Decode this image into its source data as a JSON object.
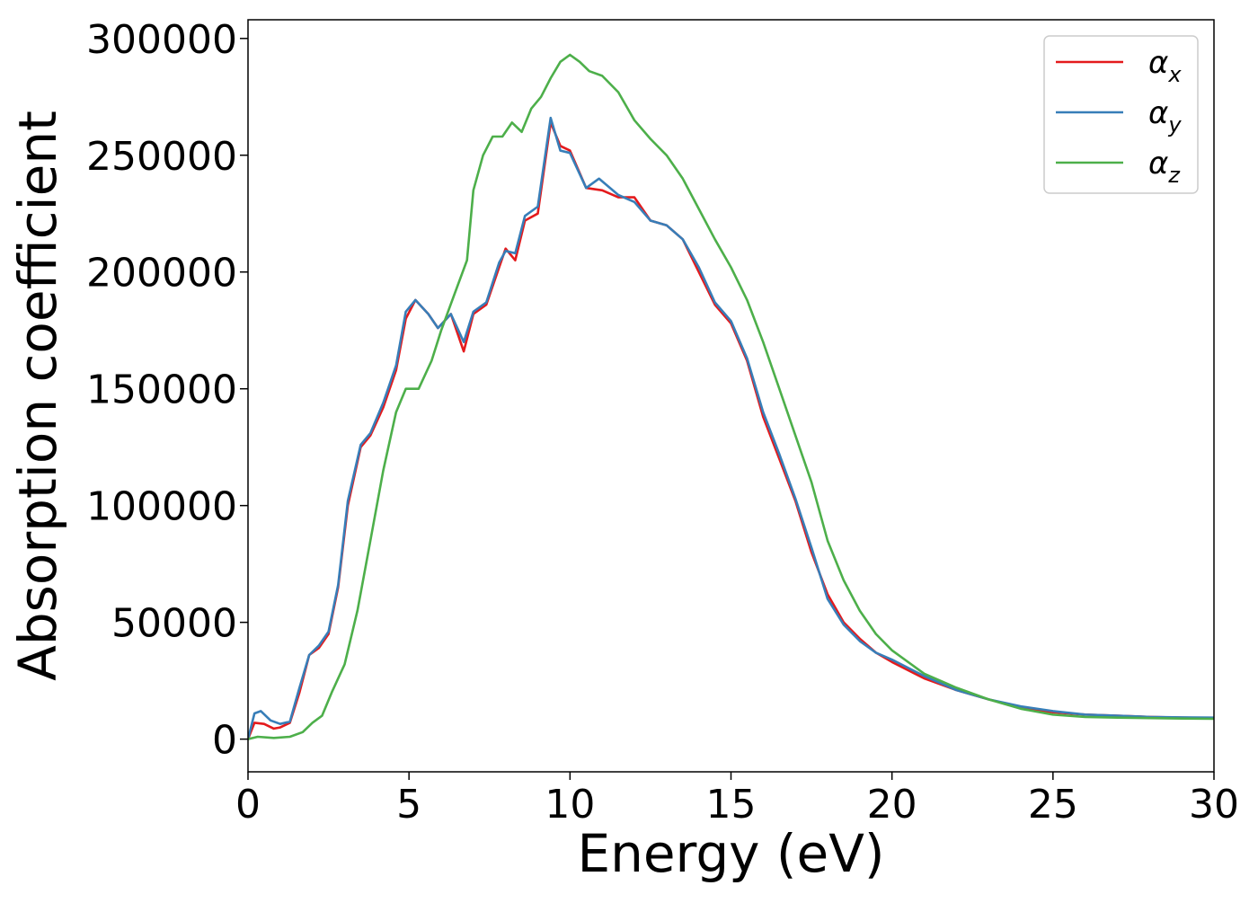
{
  "chart_data": {
    "type": "line",
    "title": "",
    "xlabel": "Energy (eV)",
    "ylabel": "Absorption coefficient",
    "xlim": [
      0,
      30
    ],
    "ylim": [
      -14000,
      308000
    ],
    "xticks": [
      0,
      5,
      10,
      15,
      20,
      25,
      30
    ],
    "xtick_labels": [
      "0",
      "5",
      "10",
      "15",
      "20",
      "25",
      "30"
    ],
    "yticks": [
      0,
      50000,
      100000,
      150000,
      200000,
      250000,
      300000
    ],
    "ytick_labels": [
      "0",
      "50000",
      "100000",
      "150000",
      "200000",
      "250000",
      "300000"
    ],
    "grid": false,
    "legend_position": "top-right",
    "series": [
      {
        "name": "αx",
        "legend_symbol": "α",
        "legend_subscript": "x",
        "color": "#e41a1c",
        "points": [
          [
            0,
            0
          ],
          [
            0.2,
            7000
          ],
          [
            0.5,
            6500
          ],
          [
            0.8,
            4500
          ],
          [
            1.0,
            5000
          ],
          [
            1.3,
            7000
          ],
          [
            1.6,
            20000
          ],
          [
            1.9,
            36000
          ],
          [
            2.2,
            39000
          ],
          [
            2.5,
            45000
          ],
          [
            2.8,
            65000
          ],
          [
            3.1,
            100000
          ],
          [
            3.5,
            125000
          ],
          [
            3.8,
            130000
          ],
          [
            4.2,
            142000
          ],
          [
            4.6,
            158000
          ],
          [
            4.9,
            180000
          ],
          [
            5.2,
            188000
          ],
          [
            5.6,
            182000
          ],
          [
            5.9,
            176000
          ],
          [
            6.3,
            182000
          ],
          [
            6.7,
            166000
          ],
          [
            7.0,
            182000
          ],
          [
            7.4,
            186000
          ],
          [
            7.8,
            202000
          ],
          [
            8.0,
            210000
          ],
          [
            8.3,
            205000
          ],
          [
            8.6,
            222000
          ],
          [
            9.0,
            225000
          ],
          [
            9.4,
            264000
          ],
          [
            9.7,
            254000
          ],
          [
            10.0,
            252000
          ],
          [
            10.5,
            236000
          ],
          [
            11.0,
            235000
          ],
          [
            11.5,
            232000
          ],
          [
            12.0,
            232000
          ],
          [
            12.5,
            222000
          ],
          [
            13.0,
            220000
          ],
          [
            13.5,
            214000
          ],
          [
            14.0,
            200000
          ],
          [
            14.5,
            186000
          ],
          [
            15.0,
            178000
          ],
          [
            15.5,
            162000
          ],
          [
            16.0,
            138000
          ],
          [
            16.5,
            120000
          ],
          [
            17.0,
            102000
          ],
          [
            17.5,
            80000
          ],
          [
            18.0,
            62000
          ],
          [
            18.5,
            50000
          ],
          [
            19.0,
            43000
          ],
          [
            19.5,
            37000
          ],
          [
            20.0,
            33000
          ],
          [
            21.0,
            26000
          ],
          [
            22.0,
            21000
          ],
          [
            23.0,
            17000
          ],
          [
            24.0,
            13500
          ],
          [
            25.0,
            11500
          ],
          [
            26.0,
            10500
          ],
          [
            27.0,
            10000
          ],
          [
            28.0,
            9500
          ],
          [
            29.0,
            9200
          ],
          [
            30.0,
            9000
          ]
        ]
      },
      {
        "name": "αy",
        "legend_symbol": "α",
        "legend_subscript": "y",
        "color": "#377eb8",
        "points": [
          [
            0,
            0
          ],
          [
            0.2,
            11000
          ],
          [
            0.4,
            12000
          ],
          [
            0.7,
            8000
          ],
          [
            1.0,
            6500
          ],
          [
            1.3,
            7500
          ],
          [
            1.6,
            22000
          ],
          [
            1.9,
            36000
          ],
          [
            2.2,
            40000
          ],
          [
            2.5,
            46000
          ],
          [
            2.8,
            66000
          ],
          [
            3.1,
            102000
          ],
          [
            3.5,
            126000
          ],
          [
            3.8,
            131000
          ],
          [
            4.2,
            144000
          ],
          [
            4.6,
            160000
          ],
          [
            4.9,
            183000
          ],
          [
            5.2,
            188000
          ],
          [
            5.6,
            182000
          ],
          [
            5.9,
            176000
          ],
          [
            6.3,
            182000
          ],
          [
            6.7,
            170000
          ],
          [
            7.0,
            183000
          ],
          [
            7.4,
            187000
          ],
          [
            7.8,
            204000
          ],
          [
            8.0,
            209000
          ],
          [
            8.3,
            208000
          ],
          [
            8.6,
            224000
          ],
          [
            9.0,
            228000
          ],
          [
            9.4,
            266000
          ],
          [
            9.7,
            252000
          ],
          [
            10.0,
            251000
          ],
          [
            10.5,
            236000
          ],
          [
            10.9,
            240000
          ],
          [
            11.5,
            233000
          ],
          [
            12.0,
            230000
          ],
          [
            12.5,
            222000
          ],
          [
            13.0,
            220000
          ],
          [
            13.5,
            214000
          ],
          [
            14.0,
            202000
          ],
          [
            14.5,
            187000
          ],
          [
            15.0,
            179000
          ],
          [
            15.5,
            163000
          ],
          [
            16.0,
            140000
          ],
          [
            16.5,
            122000
          ],
          [
            17.0,
            103000
          ],
          [
            17.5,
            82000
          ],
          [
            18.0,
            60000
          ],
          [
            18.5,
            49000
          ],
          [
            19.0,
            42000
          ],
          [
            19.5,
            37000
          ],
          [
            20.0,
            34000
          ],
          [
            21.0,
            27000
          ],
          [
            22.0,
            21000
          ],
          [
            23.0,
            17000
          ],
          [
            24.0,
            14000
          ],
          [
            25.0,
            12000
          ],
          [
            26.0,
            10500
          ],
          [
            27.0,
            10000
          ],
          [
            28.0,
            9500
          ],
          [
            29.0,
            9300
          ],
          [
            30.0,
            9200
          ]
        ]
      },
      {
        "name": "αz",
        "legend_symbol": "α",
        "legend_subscript": "z",
        "color": "#4daf4a",
        "points": [
          [
            0,
            0
          ],
          [
            0.3,
            1000
          ],
          [
            0.8,
            500
          ],
          [
            1.3,
            1000
          ],
          [
            1.7,
            3000
          ],
          [
            2.0,
            7000
          ],
          [
            2.3,
            10000
          ],
          [
            2.6,
            20000
          ],
          [
            3.0,
            32000
          ],
          [
            3.4,
            55000
          ],
          [
            3.8,
            85000
          ],
          [
            4.2,
            115000
          ],
          [
            4.6,
            140000
          ],
          [
            4.9,
            150000
          ],
          [
            5.3,
            150000
          ],
          [
            5.7,
            162000
          ],
          [
            6.0,
            175000
          ],
          [
            6.4,
            190000
          ],
          [
            6.8,
            205000
          ],
          [
            7.0,
            235000
          ],
          [
            7.3,
            250000
          ],
          [
            7.6,
            258000
          ],
          [
            7.9,
            258000
          ],
          [
            8.2,
            264000
          ],
          [
            8.5,
            260000
          ],
          [
            8.8,
            270000
          ],
          [
            9.1,
            275000
          ],
          [
            9.4,
            283000
          ],
          [
            9.7,
            290000
          ],
          [
            10.0,
            293000
          ],
          [
            10.3,
            290000
          ],
          [
            10.6,
            286000
          ],
          [
            11.0,
            284000
          ],
          [
            11.5,
            277000
          ],
          [
            12.0,
            265000
          ],
          [
            12.5,
            257000
          ],
          [
            13.0,
            250000
          ],
          [
            13.5,
            240000
          ],
          [
            14.0,
            227000
          ],
          [
            14.5,
            214000
          ],
          [
            15.0,
            202000
          ],
          [
            15.5,
            188000
          ],
          [
            16.0,
            170000
          ],
          [
            16.5,
            150000
          ],
          [
            17.0,
            130000
          ],
          [
            17.5,
            110000
          ],
          [
            18.0,
            85000
          ],
          [
            18.5,
            68000
          ],
          [
            19.0,
            55000
          ],
          [
            19.5,
            45000
          ],
          [
            20.0,
            38000
          ],
          [
            21.0,
            28000
          ],
          [
            22.0,
            22000
          ],
          [
            23.0,
            17000
          ],
          [
            24.0,
            13000
          ],
          [
            25.0,
            10500
          ],
          [
            26.0,
            9500
          ],
          [
            27.0,
            9200
          ],
          [
            28.0,
            9000
          ],
          [
            29.0,
            8800
          ],
          [
            30.0,
            8700
          ]
        ]
      }
    ]
  }
}
